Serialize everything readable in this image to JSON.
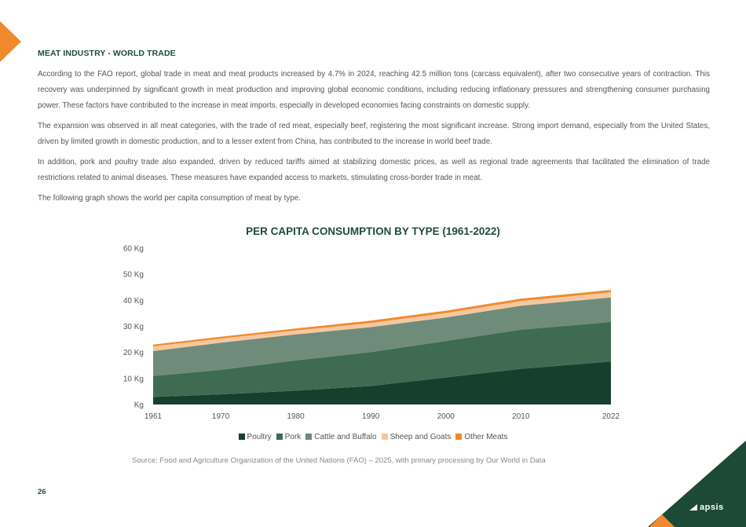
{
  "header": {
    "section_title": "MEAT INDUSTRY - WORLD TRADE"
  },
  "body": {
    "paragraphs": [
      "According to the FAO report, global trade in meat and meat products increased by 4.7% in 2024, reaching 42.5 million tons (carcass equivalent), after two consecutive years of contraction. This recovery was underpinned by significant growth in meat production and improving global economic conditions, including reducing inflationary pressures and strengthening consumer purchasing power. These factors have contributed to the increase in meat imports, especially in developed economies facing constraints on domestic supply.",
      "The expansion was observed in all meat categories, with the trade of red meat, especially beef, registering the most significant increase. Strong import demand, especially from the United States, driven by limited growth in domestic production, and to a lesser extent from China, has contributed to the increase in world beef trade.",
      "In addition, pork and poultry trade also expanded, driven by reduced tariffs aimed at stabilizing domestic prices, as well as regional trade agreements that facilitated the elimination of trade restrictions related to animal diseases. These measures have expanded access to markets, stimulating cross-border trade in meat.",
      "The following graph shows the world per capita consumption  of meat by type."
    ]
  },
  "chart_data": {
    "type": "area",
    "stacked": true,
    "title": "PER CAPITA CONSUMPTION BY TYPE (1961-2022)",
    "x": [
      1961,
      1970,
      1980,
      1990,
      2000,
      2010,
      2022
    ],
    "x_tick_labels": [
      "1961",
      "1970",
      "1980",
      "1990",
      "2000",
      "2010",
      "2022"
    ],
    "y_tick_labels": [
      "Kg",
      "10 Kg",
      "20 Kg",
      "30 Kg",
      "40 Kg",
      "50 Kg",
      "60 Kg"
    ],
    "ylim": [
      0,
      60
    ],
    "grid": false,
    "legend_position": "bottom",
    "series": [
      {
        "name": "Poultry",
        "color": "#163f2e",
        "values": [
          2.9,
          3.9,
          5.3,
          7.1,
          10.4,
          13.7,
          16.5
        ]
      },
      {
        "name": "Pork",
        "color": "#3f6b53",
        "values": [
          8.0,
          9.4,
          11.6,
          13.0,
          14.0,
          15.0,
          15.2
        ]
      },
      {
        "name": "Cattle and Buffalo",
        "color": "#6e8c79",
        "values": [
          9.6,
          10.4,
          10.0,
          9.6,
          9.0,
          9.2,
          9.4
        ]
      },
      {
        "name": "Sheep and Goats",
        "color": "#f5c7a0",
        "values": [
          1.8,
          1.6,
          1.5,
          1.6,
          1.7,
          1.8,
          2.0
        ]
      },
      {
        "name": "Other Meats",
        "color": "#f18a2c",
        "values": [
          0.7,
          0.7,
          0.8,
          0.9,
          0.9,
          0.9,
          0.9
        ]
      }
    ]
  },
  "footer": {
    "source": "Source: Food and Agriculture Organization of the United Nations (FAO) – 2025, with primary processing by Our World in Data",
    "page_number": "26",
    "logo_text": "apsis"
  }
}
